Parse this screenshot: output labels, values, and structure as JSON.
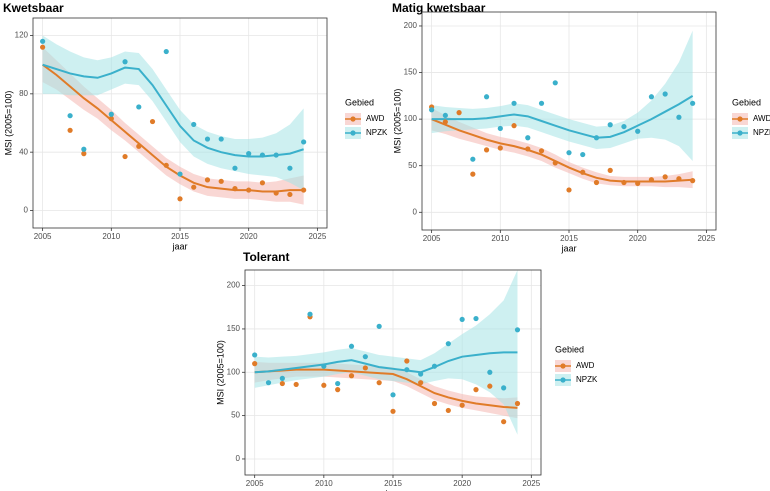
{
  "chart_data": [
    {
      "type": "scatter",
      "title": "Kwetsbaar",
      "x_label": "jaar",
      "y_label": "MSI (2005=100)",
      "legend_title": "Gebied",
      "x": [
        2005,
        2006,
        2007,
        2008,
        2009,
        2010,
        2011,
        2012,
        2013,
        2014,
        2015,
        2016,
        2017,
        2018,
        2019,
        2020,
        2021,
        2022,
        2023,
        2024
      ],
      "xlim": [
        2004.3,
        2025.7
      ],
      "xticks": [
        2005,
        2010,
        2015,
        2020,
        2025
      ],
      "ylim": [
        -12,
        132
      ],
      "yticks": [
        0,
        40,
        80,
        120
      ],
      "grid": true,
      "series": [
        {
          "name": "AWD",
          "color": "#e07b28",
          "band_color": "#f4b6b0",
          "values": [
            112,
            null,
            55,
            39,
            null,
            63,
            37,
            44,
            61,
            31,
            8,
            16,
            21,
            20,
            15,
            14,
            19,
            12,
            11,
            14
          ],
          "smooth": [
            100,
            93,
            85,
            77,
            70,
            62,
            54,
            46,
            38,
            30,
            24,
            19,
            16,
            15,
            14,
            14,
            13,
            13,
            14,
            14
          ],
          "lower": [
            88,
            83,
            76,
            69,
            63,
            55,
            48,
            40,
            32,
            24,
            18,
            13,
            10,
            9,
            8,
            8,
            7,
            6,
            6,
            4
          ],
          "upper": [
            112,
            103,
            94,
            85,
            77,
            69,
            60,
            52,
            44,
            36,
            30,
            25,
            22,
            21,
            20,
            20,
            19,
            20,
            22,
            24
          ]
        },
        {
          "name": "NPZK",
          "color": "#3ab0cb",
          "band_color": "#a6e3e6",
          "values": [
            116,
            null,
            65,
            42,
            null,
            66,
            102,
            71,
            null,
            109,
            25,
            59,
            49,
            49,
            29,
            39,
            38,
            38,
            29,
            47
          ],
          "smooth": [
            100,
            97,
            94,
            92,
            91,
            94,
            98,
            97,
            86,
            72,
            58,
            48,
            43,
            40,
            38,
            37,
            37,
            38,
            39,
            42
          ],
          "lower": [
            80,
            80,
            79,
            79,
            79,
            83,
            87,
            86,
            75,
            61,
            47,
            37,
            32,
            29,
            27,
            25,
            24,
            23,
            19,
            14
          ],
          "upper": [
            120,
            114,
            109,
            105,
            103,
            105,
            109,
            108,
            97,
            83,
            69,
            59,
            54,
            51,
            49,
            49,
            50,
            53,
            59,
            70
          ]
        }
      ]
    },
    {
      "type": "scatter",
      "title": "Matig kwetsbaar",
      "x_label": "jaar",
      "y_label": "MSI (2005=100)",
      "legend_title": "Gebied",
      "x": [
        2005,
        2006,
        2007,
        2008,
        2009,
        2010,
        2011,
        2012,
        2013,
        2014,
        2015,
        2016,
        2017,
        2018,
        2019,
        2020,
        2021,
        2022,
        2023,
        2024
      ],
      "xlim": [
        2004.3,
        2025.7
      ],
      "xticks": [
        2005,
        2010,
        2015,
        2020,
        2025
      ],
      "ylim": [
        -19,
        215
      ],
      "yticks": [
        0,
        50,
        100,
        150,
        200
      ],
      "grid": true,
      "series": [
        {
          "name": "AWD",
          "color": "#e07b28",
          "band_color": "#f4b6b0",
          "values": [
            113,
            97,
            107,
            41,
            67,
            69,
            93,
            68,
            66,
            53,
            24,
            43,
            32,
            45,
            32,
            31,
            35,
            38,
            36,
            34
          ],
          "smooth": [
            100,
            94,
            88,
            83,
            78,
            74,
            71,
            67,
            62,
            55,
            48,
            42,
            37,
            34,
            33,
            33,
            33,
            33,
            34,
            35
          ],
          "lower": [
            88,
            84,
            79,
            75,
            71,
            67,
            64,
            60,
            55,
            48,
            42,
            36,
            31,
            29,
            28,
            28,
            28,
            27,
            27,
            26
          ],
          "upper": [
            112,
            104,
            97,
            91,
            85,
            81,
            78,
            74,
            69,
            62,
            54,
            48,
            43,
            39,
            38,
            38,
            38,
            39,
            41,
            44
          ]
        },
        {
          "name": "NPZK",
          "color": "#3ab0cb",
          "band_color": "#a6e3e6",
          "values": [
            110,
            104,
            null,
            57,
            124,
            90,
            117,
            80,
            117,
            139,
            64,
            62,
            80,
            94,
            92,
            87,
            124,
            127,
            102,
            117
          ],
          "smooth": [
            100,
            100,
            100,
            100,
            101,
            103,
            105,
            103,
            98,
            93,
            88,
            84,
            80,
            81,
            86,
            93,
            100,
            108,
            116,
            125
          ],
          "lower": [
            85,
            87,
            88,
            89,
            90,
            92,
            93,
            91,
            86,
            81,
            76,
            72,
            68,
            69,
            74,
            79,
            80,
            78,
            71,
            55
          ],
          "upper": [
            115,
            113,
            112,
            111,
            112,
            114,
            117,
            115,
            110,
            105,
            100,
            96,
            92,
            93,
            98,
            107,
            120,
            138,
            161,
            195
          ]
        }
      ]
    },
    {
      "type": "scatter",
      "title": "Tolerant",
      "x_label": "jaar",
      "y_label": "MSI (2005=100)",
      "legend_title": "Gebied",
      "x": [
        2005,
        2006,
        2007,
        2008,
        2009,
        2010,
        2011,
        2012,
        2013,
        2014,
        2015,
        2016,
        2017,
        2018,
        2019,
        2020,
        2021,
        2022,
        2023,
        2024
      ],
      "xlim": [
        2004.3,
        2025.7
      ],
      "xticks": [
        2005,
        2010,
        2015,
        2020,
        2025
      ],
      "ylim": [
        -18.5,
        218
      ],
      "yticks": [
        0,
        50,
        100,
        150,
        200
      ],
      "grid": true,
      "series": [
        {
          "name": "AWD",
          "color": "#e07b28",
          "band_color": "#f4b6b0",
          "values": [
            110,
            null,
            87,
            86,
            164,
            85,
            80,
            96,
            105,
            88,
            55,
            113,
            88,
            64,
            56,
            62,
            80,
            84,
            43,
            64
          ],
          "smooth": [
            100,
            101,
            102,
            103,
            103,
            103,
            102,
            101,
            100,
            99,
            98,
            92,
            84,
            76,
            71,
            67,
            64,
            62,
            60,
            59
          ],
          "lower": [
            88,
            91,
            93,
            95,
            95,
            95,
            94,
            93,
            92,
            91,
            90,
            84,
            76,
            68,
            63,
            59,
            56,
            53,
            50,
            47
          ],
          "upper": [
            112,
            111,
            111,
            111,
            111,
            111,
            110,
            109,
            108,
            107,
            106,
            100,
            92,
            84,
            79,
            75,
            72,
            71,
            70,
            71
          ]
        },
        {
          "name": "NPZK",
          "color": "#3ab0cb",
          "band_color": "#a6e3e6",
          "values": [
            120,
            88,
            93,
            null,
            167,
            107,
            87,
            130,
            118,
            153,
            74,
            103,
            98,
            107,
            133,
            161,
            162,
            100,
            82,
            149
          ],
          "smooth": [
            100,
            101,
            103,
            105,
            107,
            109,
            112,
            114,
            110,
            106,
            104,
            102,
            100,
            106,
            113,
            118,
            120,
            122,
            123,
            123
          ],
          "lower": [
            82,
            85,
            88,
            91,
            93,
            95,
            98,
            100,
            96,
            92,
            90,
            88,
            86,
            90,
            93,
            92,
            86,
            77,
            63,
            28
          ],
          "upper": [
            118,
            117,
            118,
            119,
            121,
            123,
            126,
            128,
            124,
            120,
            118,
            116,
            114,
            122,
            133,
            144,
            154,
            167,
            183,
            218
          ]
        }
      ]
    }
  ]
}
